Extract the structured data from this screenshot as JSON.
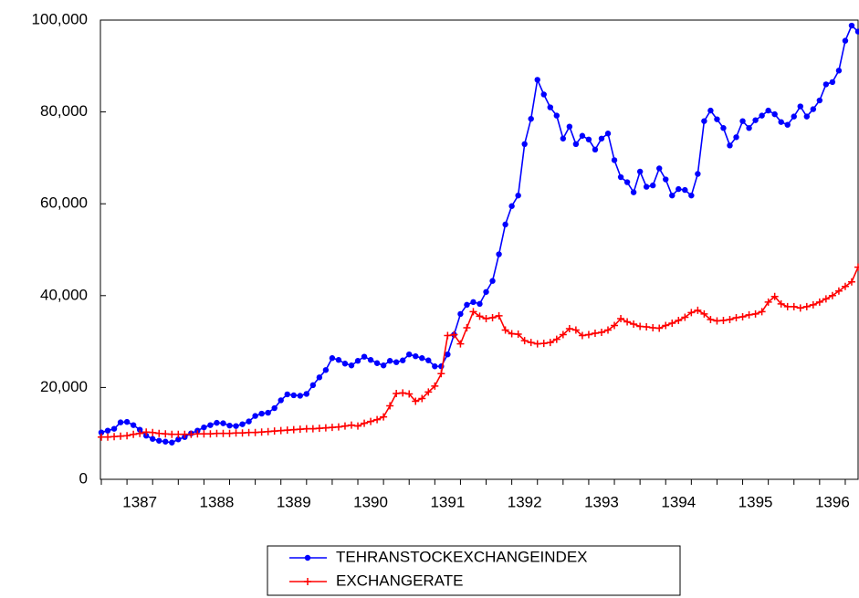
{
  "chart_data": {
    "type": "line",
    "categories": [
      null,
      null,
      null,
      null,
      null,
      null,
      "1387",
      null,
      null,
      null,
      null,
      null,
      null,
      null,
      null,
      null,
      null,
      null,
      "1388",
      null,
      null,
      null,
      null,
      null,
      null,
      null,
      null,
      null,
      null,
      null,
      "1389",
      null,
      null,
      null,
      null,
      null,
      null,
      null,
      null,
      null,
      null,
      null,
      "1390",
      null,
      null,
      null,
      null,
      null,
      null,
      null,
      null,
      null,
      null,
      null,
      "1391",
      null,
      null,
      null,
      null,
      null,
      null,
      null,
      null,
      null,
      null,
      null,
      "1392",
      null,
      null,
      null,
      null,
      null,
      null,
      null,
      null,
      null,
      null,
      null,
      "1393",
      null,
      null,
      null,
      null,
      null,
      null,
      null,
      null,
      null,
      null,
      null,
      "1394",
      null,
      null,
      null,
      null,
      null,
      null,
      null,
      null,
      null,
      null,
      null,
      "1395",
      null,
      null,
      null,
      null,
      null,
      null,
      null,
      null,
      null,
      null,
      null,
      "1396",
      null,
      null,
      null,
      null
    ],
    "series": [
      {
        "name": "TEHRANSTOCKEXCHANGEINDEX",
        "color": "#0000ff",
        "marker": "circle",
        "values": [
          10200,
          10600,
          11000,
          12400,
          12500,
          11800,
          10800,
          9500,
          8800,
          8400,
          8200,
          8000,
          8700,
          9200,
          10000,
          10600,
          11300,
          11800,
          12300,
          12200,
          11700,
          11600,
          12000,
          12600,
          13800,
          14300,
          14500,
          15500,
          17200,
          18500,
          18300,
          18200,
          18600,
          20500,
          22200,
          23800,
          26400,
          26000,
          25200,
          24800,
          25800,
          26700,
          26000,
          25300,
          24800,
          25800,
          25500,
          25900,
          27200,
          26800,
          26400,
          25900,
          24600,
          24600,
          27200,
          31500,
          36000,
          38000,
          38600,
          38200,
          40800,
          43200,
          49000,
          55500,
          59500,
          61800,
          73000,
          78500,
          87000,
          83800,
          81000,
          79200,
          74200,
          76800,
          73000,
          74800,
          74000,
          71800,
          74200,
          75300,
          69500,
          65800,
          64700,
          62500,
          67000,
          63700,
          64000,
          67700,
          65300,
          61800,
          63200,
          63000,
          61800,
          66500,
          78000,
          80300,
          78400,
          76500,
          72700,
          74500,
          78000,
          76500,
          78200,
          79200,
          80300,
          79500,
          77800,
          77200,
          79000,
          81200,
          79000,
          80600,
          82500,
          86000,
          86500,
          89000,
          95500,
          98800,
          97500
        ]
      },
      {
        "name": "EXCHANGERATE",
        "color": "#ff0000",
        "marker": "plus",
        "values": [
          9200,
          9200,
          9300,
          9400,
          9500,
          9800,
          10000,
          10300,
          10200,
          10000,
          9900,
          9800,
          9800,
          9800,
          9800,
          9900,
          9900,
          9900,
          10000,
          10000,
          10000,
          10100,
          10100,
          10200,
          10200,
          10300,
          10400,
          10500,
          10600,
          10700,
          10800,
          10900,
          11000,
          11000,
          11100,
          11200,
          11300,
          11400,
          11600,
          11800,
          11600,
          12200,
          12600,
          13000,
          13600,
          16000,
          18700,
          18800,
          18600,
          17000,
          17600,
          19000,
          20300,
          23000,
          31300,
          31500,
          29500,
          33000,
          36500,
          35500,
          35000,
          35200,
          35600,
          32500,
          31700,
          31600,
          30200,
          29800,
          29500,
          29600,
          29800,
          30500,
          31500,
          32800,
          32500,
          31300,
          31500,
          31800,
          32000,
          32500,
          33500,
          35000,
          34300,
          33800,
          33300,
          33200,
          33000,
          32900,
          33500,
          34000,
          34600,
          35300,
          36300,
          36800,
          36000,
          34800,
          34500,
          34600,
          34800,
          35200,
          35400,
          35800,
          36000,
          36500,
          38600,
          39800,
          38200,
          37600,
          37600,
          37300,
          37600,
          38000,
          38600,
          39300,
          40000,
          41000,
          42000,
          43000,
          46200
        ]
      }
    ],
    "ylim": [
      0,
      100000
    ],
    "yticks": [
      0,
      {
        "value": 20000,
        "label": "20,000"
      },
      {
        "value": 40000,
        "label": "40,000"
      },
      {
        "value": 60000,
        "label": "60,000"
      },
      {
        "value": 80000,
        "label": "80,000"
      },
      {
        "value": 100000,
        "label": "100,000"
      }
    ],
    "grid": false,
    "legend": "bottom"
  }
}
